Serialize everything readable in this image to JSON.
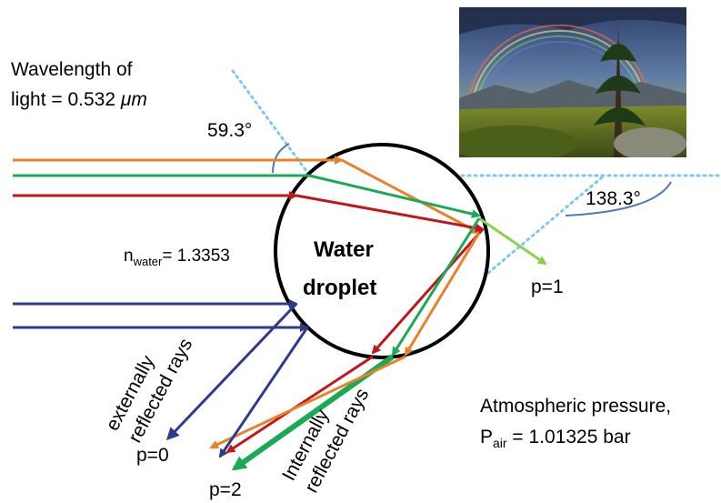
{
  "wavelength": {
    "line1": "Wavelength of",
    "line2_prefix": "light = 0.532 ",
    "line2_unit": "μm"
  },
  "angle_incidence": "59.3°",
  "angle_scatter": "138.3°",
  "n_water": {
    "base": "n",
    "sub": "water",
    "value": "= 1.3353"
  },
  "droplet": {
    "line1": "Water",
    "line2": "droplet"
  },
  "p1": "p=1",
  "p0": "p=0",
  "p2": "p=2",
  "externally": {
    "line1": "externally",
    "line2": "reflected rays"
  },
  "internally": {
    "line1": "Internally",
    "line2": "reflected rays"
  },
  "pressure": {
    "line1": "Atmospheric pressure,",
    "base": "P",
    "sub": "air",
    "value": " = 1.01325 bar"
  },
  "photo_icon": "rainbow-landscape-photo",
  "colors": {
    "orange": "#e8822a",
    "green": "#1aaa55",
    "red": "#c0161c",
    "navy": "#2e3a8c",
    "lightgreen": "#8dd14a",
    "dotted": "#7fc7f0",
    "arc": "#4a78b8"
  }
}
